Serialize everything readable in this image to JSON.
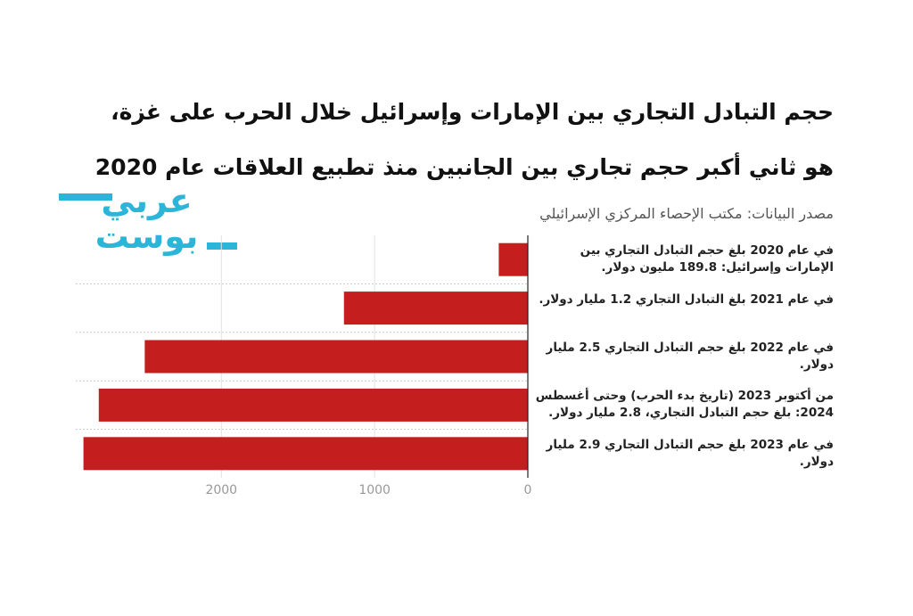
{
  "chart_data": {
    "type": "bar",
    "orientation": "horizontal",
    "title": "حجم التبادل التجاري بين الإمارات وإسرائيل خلال الحرب على غزة، هو ثاني أكبر حجم تجاري بين الجانبين منذ تطبيع العلاقات عام 2020",
    "subtitle": "مصدر البيانات: مكتب الإحصاء المركزي الإسرائيلي",
    "logo": "عربي بوست",
    "categories": [
      "في عام 2020 بلغ حجم التبادل التجاري بين الإمارات وإسرائيل: 189.8 مليون دولار.",
      "في عام 2021 بلغ التبادل التجاري 1.2 مليار دولار.",
      "في عام 2022 بلغ حجم التبادل التجاري 2.5 مليار دولار.",
      "من أكتوبر 2023 (تاريخ بدء الحرب) وحتى أغسطس 2024: بلغ حجم التبادل التجاري، 2.8 مليار دولار.",
      "في عام 2023 بلغ حجم التبادل التجاري 2.9 مليار دولار."
    ],
    "values": [
      189.8,
      1200,
      2500,
      2800,
      2900
    ],
    "color": "#c41e1e",
    "xlim": [
      0,
      2950
    ],
    "xticks": [
      0,
      1000,
      2000
    ],
    "x_reversed": true,
    "grid": true
  }
}
